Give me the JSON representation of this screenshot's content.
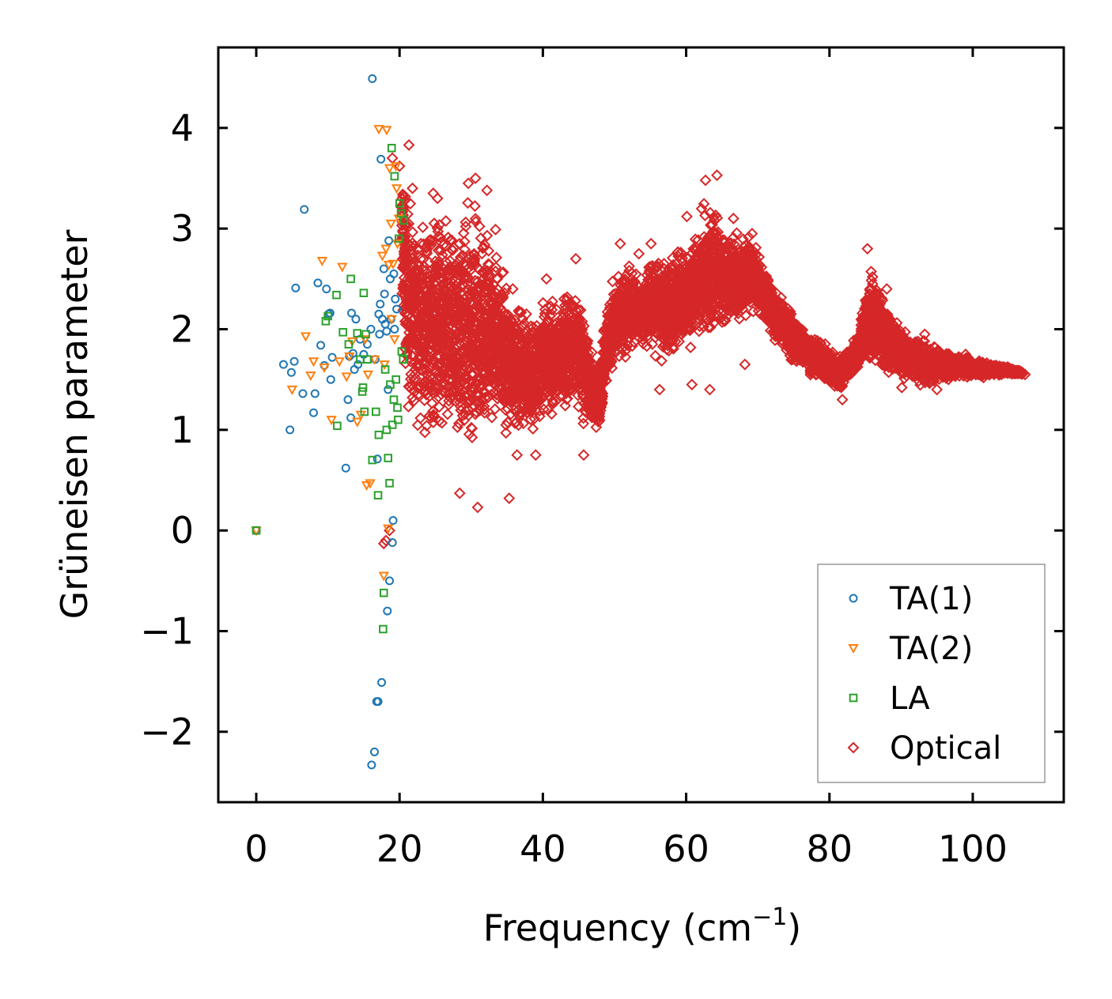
{
  "chart_data": {
    "type": "scatter",
    "title": "",
    "xlabel": "Frequency (cm",
    "xlabel_sup": "−1",
    "xlabel_close": ")",
    "ylabel": "Grüneisen parameter",
    "xlim": [
      -5.3,
      112.7
    ],
    "ylim": [
      -2.7,
      4.8
    ],
    "xticks": [
      0,
      20,
      40,
      60,
      80,
      100
    ],
    "yticks": [
      -2,
      -1,
      0,
      1,
      2,
      3,
      4
    ],
    "xtick_labels": [
      "0",
      "20",
      "40",
      "60",
      "80",
      "100"
    ],
    "ytick_labels": [
      "−2",
      "−1",
      "0",
      "1",
      "2",
      "3",
      "4"
    ],
    "grid": false,
    "legend_position": "lower-right",
    "series": [
      {
        "name": "TA(1)",
        "marker": "circle",
        "color": "#1f77b4",
        "points": [
          [
            0,
            0
          ],
          [
            3.8,
            1.65
          ],
          [
            4.7,
            1.0
          ],
          [
            4.9,
            1.57
          ],
          [
            5.3,
            1.68
          ],
          [
            5.5,
            2.41
          ],
          [
            6.5,
            1.36
          ],
          [
            6.7,
            3.19
          ],
          [
            8.0,
            1.17
          ],
          [
            8.2,
            1.36
          ],
          [
            8.6,
            2.46
          ],
          [
            9.0,
            1.84
          ],
          [
            9.5,
            1.64
          ],
          [
            9.8,
            2.4
          ],
          [
            10.1,
            2.15
          ],
          [
            10.3,
            2.16
          ],
          [
            10.4,
            1.5
          ],
          [
            10.6,
            1.72
          ],
          [
            12.5,
            0.62
          ],
          [
            12.8,
            1.3
          ],
          [
            13.0,
            1.73
          ],
          [
            13.2,
            1.12
          ],
          [
            13.3,
            2.16
          ],
          [
            13.5,
            1.76
          ],
          [
            13.7,
            1.6
          ],
          [
            13.9,
            2.1
          ],
          [
            14.2,
            1.65
          ],
          [
            14.5,
            1.9
          ],
          [
            15.0,
            1.75
          ],
          [
            15.5,
            1.85
          ],
          [
            16.0,
            2.0
          ],
          [
            16.2,
            4.49
          ],
          [
            16.5,
            -2.2
          ],
          [
            16.1,
            -2.33
          ],
          [
            16.8,
            -1.7
          ],
          [
            17.0,
            -1.7
          ],
          [
            16.9,
            0.71
          ],
          [
            17.2,
            1.95
          ],
          [
            17.3,
            2.25
          ],
          [
            17.4,
            3.69
          ],
          [
            17.5,
            -1.51
          ],
          [
            17.6,
            2.1
          ],
          [
            17.8,
            2.6
          ],
          [
            18.0,
            2.05
          ],
          [
            18.2,
            1.98
          ],
          [
            18.3,
            -0.8
          ],
          [
            18.4,
            1.4
          ],
          [
            18.5,
            2.88
          ],
          [
            18.6,
            -0.5
          ],
          [
            18.8,
            2.1
          ],
          [
            19.0,
            -0.12
          ],
          [
            19.1,
            0.1
          ],
          [
            19.2,
            2.55
          ],
          [
            19.4,
            2.3
          ],
          [
            19.6,
            2.2
          ],
          [
            16.6,
            1.7
          ],
          [
            17.1,
            2.15
          ],
          [
            17.9,
            2.35
          ],
          [
            18.7,
            2.5
          ],
          [
            19.3,
            2.0
          ]
        ]
      },
      {
        "name": "TA(2)",
        "marker": "triangle",
        "color": "#ff7f0e",
        "points": [
          [
            0,
            0
          ],
          [
            5.0,
            1.4
          ],
          [
            6.9,
            1.93
          ],
          [
            7.6,
            1.54
          ],
          [
            8.0,
            1.68
          ],
          [
            9.2,
            2.68
          ],
          [
            9.5,
            1.62
          ],
          [
            10.5,
            1.1
          ],
          [
            11.6,
            1.68
          ],
          [
            12.0,
            2.62
          ],
          [
            12.6,
            1.53
          ],
          [
            13.0,
            1.73
          ],
          [
            13.4,
            1.88
          ],
          [
            14.1,
            1.08
          ],
          [
            14.6,
            1.15
          ],
          [
            15.2,
            1.9
          ],
          [
            15.4,
            0.45
          ],
          [
            15.6,
            1.55
          ],
          [
            15.9,
            0.47
          ],
          [
            16.5,
            1.7
          ],
          [
            17.1,
            3.99
          ],
          [
            17.6,
            2.73
          ],
          [
            17.8,
            -0.45
          ],
          [
            17.9,
            1.65
          ],
          [
            18.2,
            3.98
          ],
          [
            18.4,
            0.02
          ],
          [
            18.5,
            2.64
          ],
          [
            18.6,
            3.6
          ],
          [
            18.9,
            2.1
          ],
          [
            19.1,
            2.65
          ],
          [
            19.3,
            1.9
          ],
          [
            19.5,
            3.62
          ],
          [
            19.6,
            3.4
          ],
          [
            19.7,
            2.85
          ],
          [
            18.1,
            2.8
          ],
          [
            18.8,
            3.05
          ],
          [
            19.9,
            3.1
          ]
        ]
      },
      {
        "name": "LA",
        "marker": "square",
        "color": "#2ca02c",
        "points": [
          [
            0,
            0
          ],
          [
            9.7,
            2.08
          ],
          [
            10.0,
            2.13
          ],
          [
            11.2,
            2.34
          ],
          [
            11.3,
            1.04
          ],
          [
            12.1,
            1.97
          ],
          [
            12.9,
            1.85
          ],
          [
            13.2,
            2.5
          ],
          [
            14.1,
            1.96
          ],
          [
            14.5,
            1.7
          ],
          [
            14.8,
            1.38
          ],
          [
            14.9,
            1.42
          ],
          [
            15.0,
            2.36
          ],
          [
            15.1,
            1.18
          ],
          [
            15.3,
            1.95
          ],
          [
            15.5,
            1.7
          ],
          [
            16.2,
            0.7
          ],
          [
            16.7,
            1.18
          ],
          [
            17.0,
            0.35
          ],
          [
            17.1,
            0.95
          ],
          [
            17.7,
            -0.98
          ],
          [
            17.8,
            -0.62
          ],
          [
            18.2,
            1.0
          ],
          [
            18.4,
            0.72
          ],
          [
            18.6,
            0.47
          ],
          [
            18.9,
            3.8
          ],
          [
            19.0,
            1.05
          ],
          [
            19.2,
            1.3
          ],
          [
            19.3,
            3.52
          ],
          [
            19.5,
            1.5
          ],
          [
            19.7,
            1.22
          ],
          [
            19.8,
            1.1
          ],
          [
            19.9,
            2.9
          ],
          [
            20.0,
            3.25
          ],
          [
            20.2,
            3.15
          ],
          [
            20.3,
            1.78
          ],
          [
            20.5,
            1.7
          ],
          [
            20.6,
            3.08
          ],
          [
            18.0,
            1.6
          ],
          [
            18.7,
            1.45
          ]
        ]
      },
      {
        "name": "Optical",
        "marker": "diamond",
        "color": "#d62728",
        "points": [
          [
            17.8,
            -0.13
          ],
          [
            18.1,
            -0.1
          ],
          [
            18.6,
            0.0
          ],
          [
            19.0,
            3.7
          ],
          [
            20.0,
            3.62
          ],
          [
            21.3,
            3.83
          ],
          [
            21.8,
            3.4
          ],
          [
            24.7,
            3.35
          ],
          [
            25.3,
            3.3
          ],
          [
            29.6,
            3.45
          ],
          [
            30.6,
            3.5
          ],
          [
            32.2,
            3.38
          ],
          [
            33.4,
            2.99
          ],
          [
            35.8,
            2.4
          ],
          [
            37.7,
            2.15
          ],
          [
            40.5,
            2.5
          ],
          [
            44.6,
            2.7
          ],
          [
            50.8,
            2.85
          ],
          [
            53.4,
            2.75
          ],
          [
            55.1,
            2.85
          ],
          [
            60.1,
            3.12
          ],
          [
            62.7,
            3.48
          ],
          [
            64.3,
            3.53
          ],
          [
            66.6,
            3.1
          ],
          [
            69.2,
            2.95
          ],
          [
            28.4,
            0.37
          ],
          [
            30.9,
            0.23
          ],
          [
            35.3,
            0.32
          ],
          [
            36.4,
            0.75
          ],
          [
            39.0,
            0.75
          ],
          [
            45.7,
            0.75
          ],
          [
            56.3,
            1.4
          ],
          [
            60.8,
            1.45
          ],
          [
            63.3,
            1.4
          ],
          [
            68.2,
            1.65
          ],
          [
            81.8,
            1.3
          ],
          [
            90.1,
            1.42
          ],
          [
            95.0,
            1.4
          ],
          [
            101.5,
            1.52
          ],
          [
            104.0,
            1.55
          ],
          [
            107.3,
            1.55
          ],
          [
            85.3,
            2.8
          ],
          [
            88.0,
            2.4
          ],
          [
            93.3,
            1.95
          ],
          [
            99.0,
            1.75
          ]
        ],
        "envelope": [
          [
            20.3,
            2.3,
            3.6
          ],
          [
            21,
            1.0,
            3.6
          ],
          [
            22,
            0.9,
            3.4
          ],
          [
            23,
            0.8,
            3.3
          ],
          [
            24,
            0.8,
            3.3
          ],
          [
            25,
            0.75,
            3.35
          ],
          [
            26,
            0.7,
            3.3
          ],
          [
            27,
            0.65,
            3.2
          ],
          [
            28,
            0.5,
            3.3
          ],
          [
            29,
            0.45,
            3.45
          ],
          [
            30,
            0.5,
            3.45
          ],
          [
            31,
            0.55,
            3.45
          ],
          [
            32,
            0.7,
            3.35
          ],
          [
            33,
            0.8,
            3.1
          ],
          [
            34,
            0.85,
            2.9
          ],
          [
            35,
            0.85,
            2.6
          ],
          [
            36,
            0.85,
            2.4
          ],
          [
            37,
            0.85,
            2.3
          ],
          [
            38,
            0.9,
            2.2
          ],
          [
            39,
            0.95,
            2.2
          ],
          [
            40,
            1.0,
            2.4
          ],
          [
            41,
            1.0,
            2.4
          ],
          [
            42,
            1.05,
            2.3
          ],
          [
            43,
            1.1,
            2.45
          ],
          [
            44,
            1.1,
            2.6
          ],
          [
            45,
            1.0,
            2.55
          ],
          [
            46,
            0.95,
            2.2
          ],
          [
            47,
            0.95,
            1.8
          ],
          [
            48,
            0.95,
            1.7
          ],
          [
            49,
            1.4,
            2.4
          ],
          [
            50,
            1.5,
            2.6
          ],
          [
            51,
            1.6,
            2.7
          ],
          [
            52,
            1.7,
            2.7
          ],
          [
            53,
            1.8,
            2.6
          ],
          [
            54,
            1.8,
            2.5
          ],
          [
            55,
            1.7,
            2.8
          ],
          [
            56,
            1.7,
            2.9
          ],
          [
            57,
            1.6,
            2.7
          ],
          [
            58,
            1.6,
            2.8
          ],
          [
            59,
            1.7,
            2.9
          ],
          [
            60,
            1.7,
            3.05
          ],
          [
            61,
            1.7,
            3.1
          ],
          [
            62,
            1.8,
            3.2
          ],
          [
            63,
            1.8,
            3.35
          ],
          [
            64,
            1.8,
            3.4
          ],
          [
            65,
            1.9,
            3.2
          ],
          [
            66,
            2.0,
            3.0
          ],
          [
            67,
            2.0,
            3.0
          ],
          [
            68,
            2.0,
            3.1
          ],
          [
            69,
            2.1,
            3.0
          ],
          [
            70,
            2.1,
            2.8
          ],
          [
            71,
            2.0,
            2.6
          ],
          [
            72,
            1.9,
            2.5
          ],
          [
            73,
            1.8,
            2.4
          ],
          [
            74,
            1.7,
            2.3
          ],
          [
            75,
            1.6,
            2.2
          ],
          [
            76,
            1.6,
            2.1
          ],
          [
            77,
            1.55,
            2.0
          ],
          [
            78,
            1.5,
            1.95
          ],
          [
            79,
            1.45,
            1.9
          ],
          [
            80,
            1.4,
            1.85
          ],
          [
            81,
            1.35,
            1.8
          ],
          [
            82,
            1.4,
            1.8
          ],
          [
            83,
            1.5,
            1.85
          ],
          [
            84,
            1.55,
            2.0
          ],
          [
            85,
            1.6,
            2.5
          ],
          [
            86,
            1.6,
            2.7
          ],
          [
            87,
            1.55,
            2.5
          ],
          [
            88,
            1.5,
            2.3
          ],
          [
            89,
            1.5,
            2.2
          ],
          [
            90,
            1.45,
            2.05
          ],
          [
            91,
            1.45,
            2.0
          ],
          [
            92,
            1.45,
            1.95
          ],
          [
            93,
            1.4,
            1.95
          ],
          [
            94,
            1.4,
            1.9
          ],
          [
            95,
            1.45,
            1.85
          ],
          [
            96,
            1.45,
            1.8
          ],
          [
            97,
            1.5,
            1.8
          ],
          [
            98,
            1.5,
            1.75
          ],
          [
            99,
            1.5,
            1.75
          ],
          [
            100,
            1.5,
            1.7
          ],
          [
            101,
            1.52,
            1.7
          ],
          [
            102,
            1.52,
            1.68
          ],
          [
            103,
            1.53,
            1.67
          ],
          [
            104,
            1.54,
            1.65
          ],
          [
            105,
            1.55,
            1.63
          ],
          [
            106,
            1.55,
            1.6
          ],
          [
            107,
            1.55,
            1.58
          ]
        ]
      }
    ]
  }
}
